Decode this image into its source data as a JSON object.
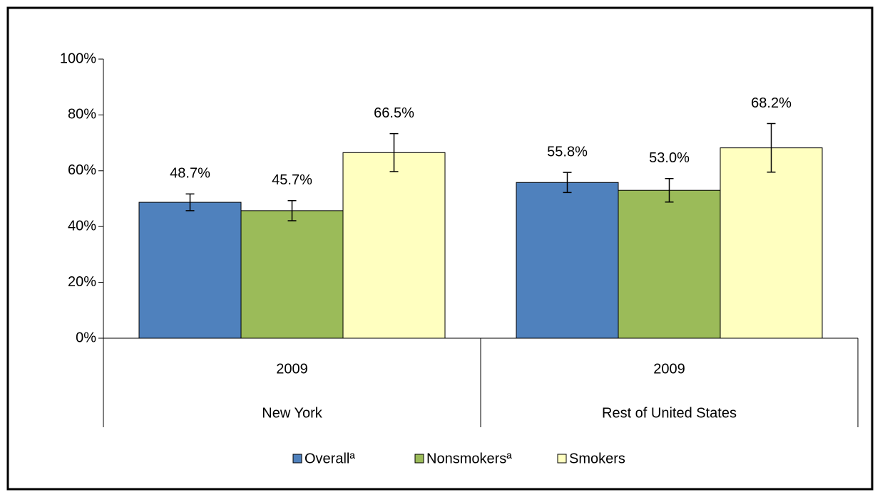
{
  "chart_data": {
    "type": "bar",
    "categories": [
      "2009",
      "2009"
    ],
    "groups": [
      "New York",
      "Rest of United States"
    ],
    "series": [
      {
        "name": "Overallª",
        "color": "#4f81bd",
        "values": [
          48.7,
          55.8
        ],
        "value_labels": [
          "48.7%",
          "55.8%"
        ],
        "errors": [
          3.0,
          3.6
        ]
      },
      {
        "name": "Nonsmokersª",
        "color": "#9bbb59",
        "values": [
          45.7,
          53.0
        ],
        "value_labels": [
          "45.7%",
          "53.0%"
        ],
        "errors": [
          3.6,
          4.2
        ]
      },
      {
        "name": "Smokers",
        "color": "#ffffc0",
        "values": [
          66.5,
          68.2
        ],
        "value_labels": [
          "66.5%",
          "68.2%"
        ],
        "errors": [
          6.8,
          8.7
        ]
      }
    ],
    "ylim": [
      0,
      100
    ],
    "yticks": [
      {
        "value": 0,
        "label": "0%"
      },
      {
        "value": 20,
        "label": "20%"
      },
      {
        "value": 40,
        "label": "40%"
      },
      {
        "value": 60,
        "label": "60%"
      },
      {
        "value": 80,
        "label": "80%"
      },
      {
        "value": 100,
        "label": "100%"
      }
    ],
    "legend": "bottom"
  }
}
